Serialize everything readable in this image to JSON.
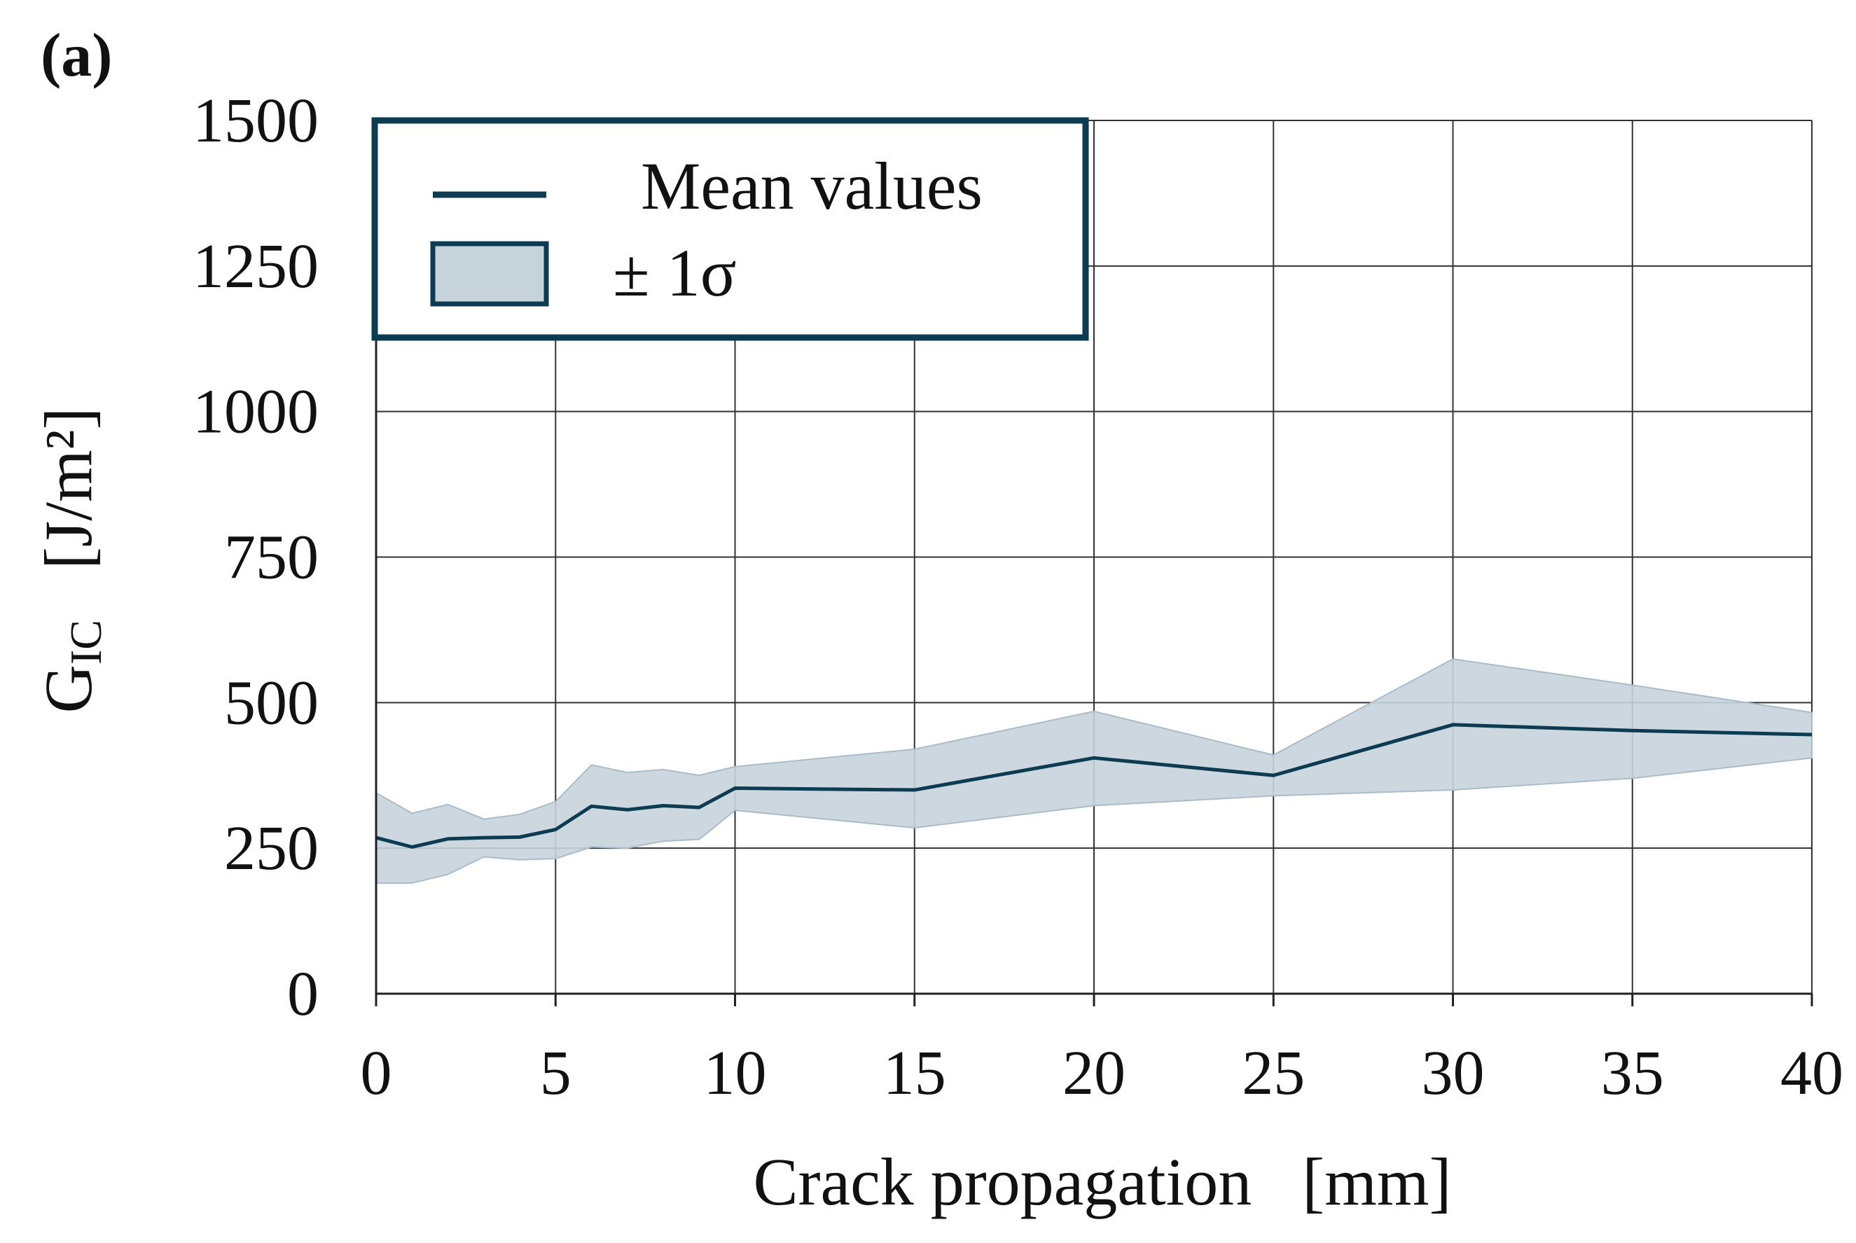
{
  "panel_label": "(a)",
  "colors": {
    "line": "#0d3b52",
    "band": "#c6d3db",
    "band_edge": "#a9bcc8",
    "grid": "#333333",
    "legend_border": "#0d3b52"
  },
  "legend": {
    "mean_label": "Mean values",
    "band_label": "± 1σ"
  },
  "chart_data": {
    "type": "line",
    "title": "",
    "xlabel": "Crack propagation   [mm]",
    "ylabel_main": "G",
    "ylabel_sub": "IC",
    "ylabel_unit": "[J/m²]",
    "xlim": [
      0,
      40
    ],
    "ylim": [
      0,
      1500
    ],
    "x_ticks": [
      0,
      5,
      10,
      15,
      20,
      25,
      30,
      35,
      40
    ],
    "x_tick_labels": [
      "0",
      "5",
      "10",
      "15",
      "20",
      "25",
      "30",
      "35",
      "40"
    ],
    "y_ticks": [
      0,
      250,
      500,
      750,
      1000,
      1250,
      1500
    ],
    "y_tick_labels": [
      "0",
      "250",
      "500",
      "750",
      "1000",
      "1250",
      "1500"
    ],
    "grid": true,
    "legend_position": "top-left",
    "series": [
      {
        "name": "Mean values",
        "x": [
          0,
          1,
          2,
          3,
          4,
          5,
          6,
          7,
          8,
          9,
          10,
          15,
          20,
          25,
          30,
          35,
          40
        ],
        "values": [
          268,
          252,
          266,
          268,
          269,
          282,
          322,
          316,
          323,
          320,
          353,
          350,
          405,
          375,
          462,
          452,
          445
        ]
      },
      {
        "name": "± 1σ",
        "x": [
          0,
          1,
          2,
          3,
          4,
          5,
          6,
          7,
          8,
          9,
          10,
          15,
          20,
          25,
          30,
          35,
          40
        ],
        "upper": [
          345,
          310,
          325,
          300,
          308,
          330,
          393,
          380,
          385,
          375,
          390,
          420,
          485,
          410,
          575,
          530,
          483
        ],
        "lower": [
          190,
          190,
          205,
          235,
          230,
          232,
          252,
          250,
          262,
          265,
          315,
          285,
          323,
          340,
          350,
          370,
          405
        ]
      }
    ]
  }
}
